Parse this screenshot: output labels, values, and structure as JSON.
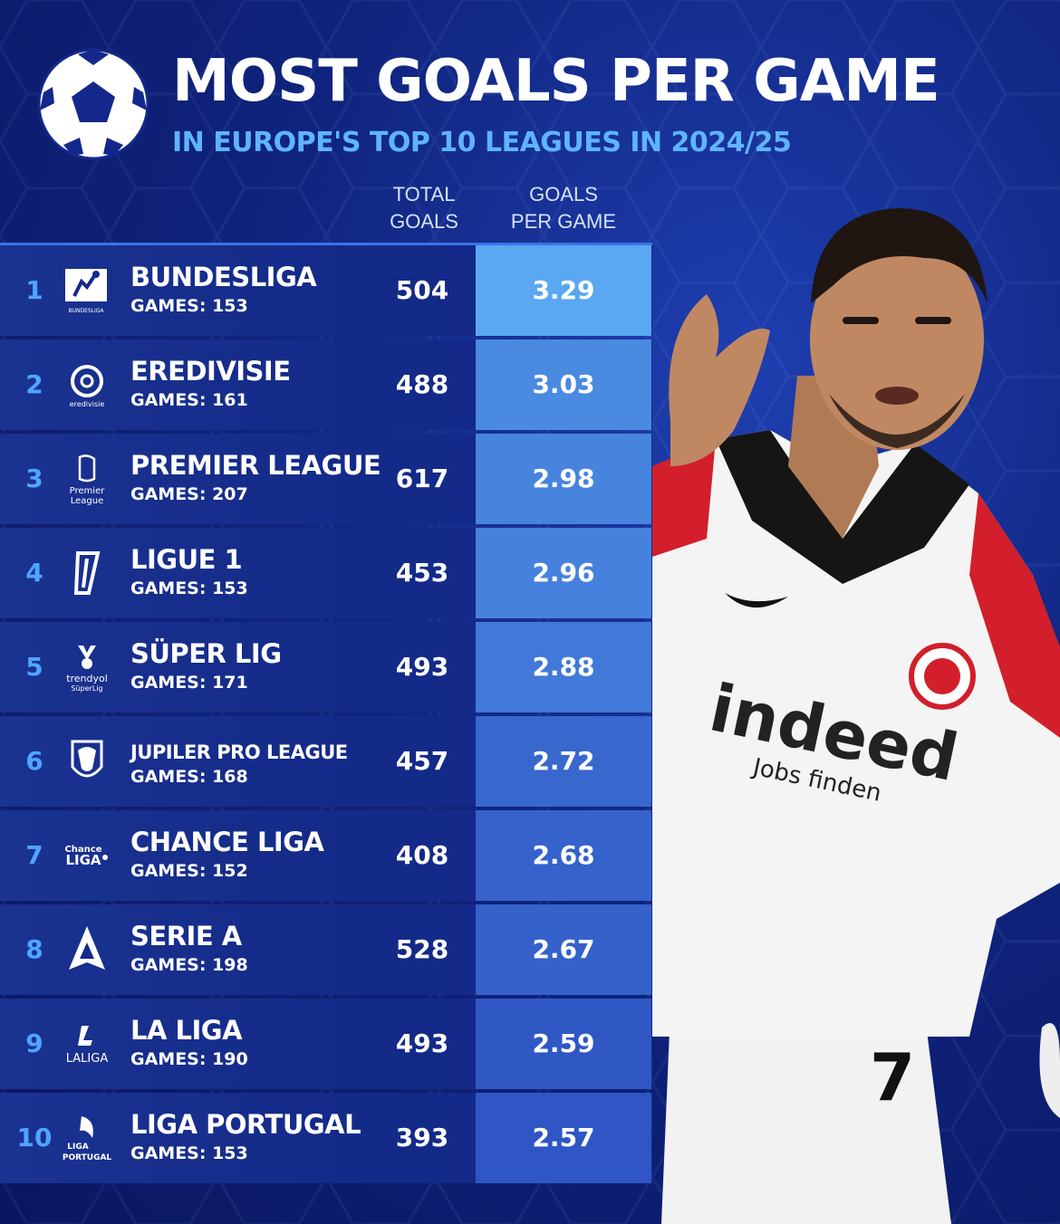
{
  "header": {
    "title": "MOST GOALS PER GAME",
    "subtitle": "IN EUROPE'S TOP 10 LEAGUES IN 2024/25"
  },
  "columns": {
    "total_line1": "TOTAL",
    "total_line2": "GOALS",
    "gpg_line1": "GOALS",
    "gpg_line2": "PER GAME"
  },
  "logos": {
    "bundesliga": "BUNDESLIGA",
    "eredivisie": "eredivisie",
    "premier_1": "Premier",
    "premier_2": "League",
    "trendyol_1": "trendyol",
    "trendyol_2": "SüperLig",
    "chance_1": "Chance",
    "chance_2": "LIGA",
    "laliga": "LALIGA",
    "portugal_1": "LIGA",
    "portugal_2": "PORTUGAL"
  },
  "jersey": {
    "sponsor": "indeed",
    "sponsor_sub": "Jobs finden",
    "number": "7"
  },
  "colors": {
    "accent": "#4ea5ff",
    "gpg_high": "#5aa7f2",
    "gpg_low": "#2f56c4",
    "row_bg": "#142a88"
  },
  "chart_data": {
    "type": "table",
    "title": "MOST GOALS PER GAME",
    "subtitle": "IN EUROPE'S TOP 10 LEAGUES IN 2024/25",
    "columns": [
      "TOTAL GOALS",
      "GOALS PER GAME"
    ],
    "rows": [
      {
        "rank": "1",
        "league": "BUNDESLIGA",
        "games": "GAMES: 153",
        "total_goals": 504,
        "goals_per_game": 3.29,
        "gpg_label": "3.29",
        "logo": "bundesliga-logo"
      },
      {
        "rank": "2",
        "league": "EREDIVISIE",
        "games": "GAMES: 161",
        "total_goals": 488,
        "goals_per_game": 3.03,
        "gpg_label": "3.03",
        "logo": "eredivisie-logo"
      },
      {
        "rank": "3",
        "league": "PREMIER LEAGUE",
        "games": "GAMES: 207",
        "total_goals": 617,
        "goals_per_game": 2.98,
        "gpg_label": "2.98",
        "logo": "premier-league-logo"
      },
      {
        "rank": "4",
        "league": "LIGUE 1",
        "games": "GAMES: 153",
        "total_goals": 453,
        "goals_per_game": 2.96,
        "gpg_label": "2.96",
        "logo": "ligue1-logo"
      },
      {
        "rank": "5",
        "league": "SÜPER LIG",
        "games": "GAMES: 171",
        "total_goals": 493,
        "goals_per_game": 2.88,
        "gpg_label": "2.88",
        "logo": "super-lig-logo"
      },
      {
        "rank": "6",
        "league": "JUPILER PRO LEAGUE",
        "games": "GAMES: 168",
        "total_goals": 457,
        "goals_per_game": 2.72,
        "gpg_label": "2.72",
        "logo": "jupiler-logo"
      },
      {
        "rank": "7",
        "league": "CHANCE LIGA",
        "games": "GAMES: 152",
        "total_goals": 408,
        "goals_per_game": 2.68,
        "gpg_label": "2.68",
        "logo": "chance-liga-logo"
      },
      {
        "rank": "8",
        "league": "SERIE A",
        "games": "GAMES: 198",
        "total_goals": 528,
        "goals_per_game": 2.67,
        "gpg_label": "2.67",
        "logo": "serie-a-logo"
      },
      {
        "rank": "9",
        "league": "LA LIGA",
        "games": "GAMES: 190",
        "total_goals": 493,
        "goals_per_game": 2.59,
        "gpg_label": "2.59",
        "logo": "laliga-logo"
      },
      {
        "rank": "10",
        "league": "LIGA PORTUGAL",
        "games": "GAMES: 153",
        "total_goals": 393,
        "goals_per_game": 2.57,
        "gpg_label": "2.57",
        "logo": "liga-portugal-logo"
      }
    ]
  }
}
